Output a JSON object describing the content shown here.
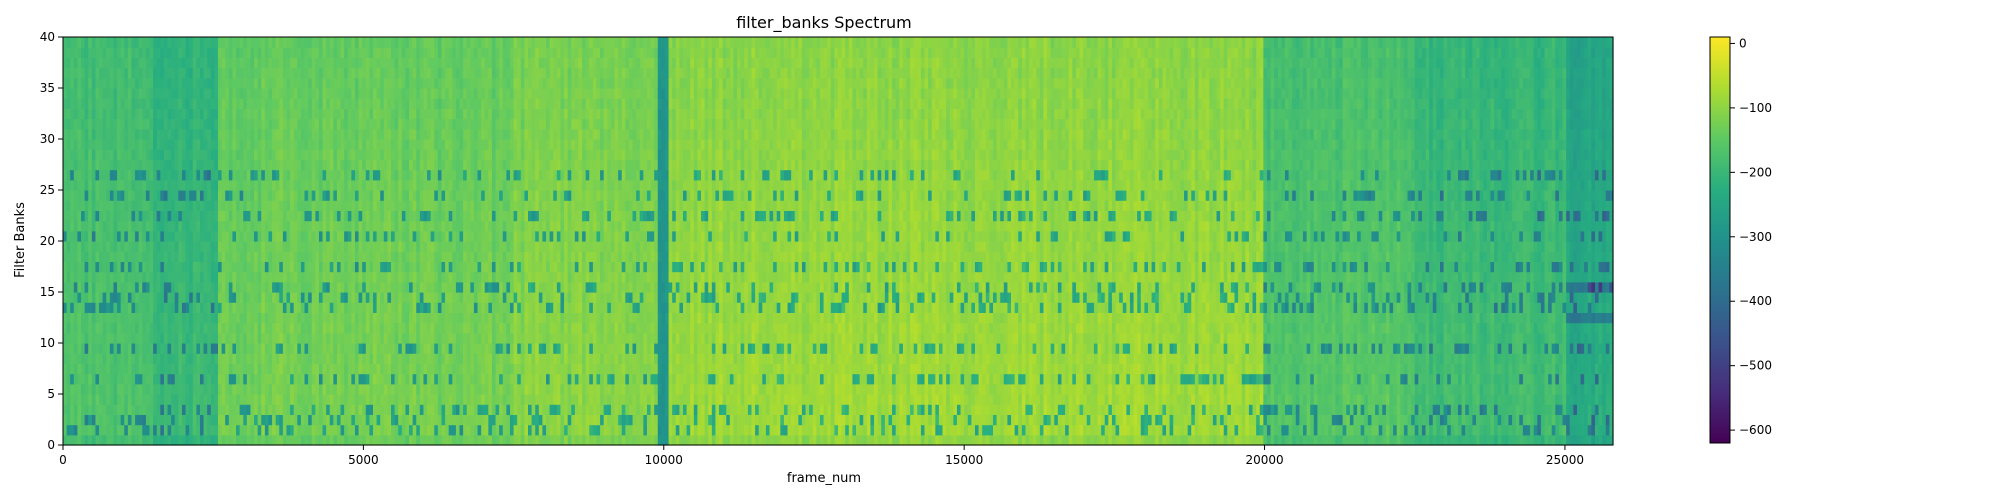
{
  "chart_data": {
    "type": "heatmap",
    "title": "filter_banks Spectrum",
    "xlabel": "frame_num",
    "ylabel": "Filter Banks",
    "xlim": [
      0,
      25800
    ],
    "ylim": [
      0,
      40
    ],
    "x_ticks": [
      "0",
      "5000",
      "10000",
      "15000",
      "20000",
      "25000"
    ],
    "x_tick_values": [
      0,
      5000,
      10000,
      15000,
      20000,
      25000
    ],
    "y_ticks": [
      "0",
      "5",
      "10",
      "15",
      "20",
      "25",
      "30",
      "35",
      "40"
    ],
    "y_tick_values": [
      0,
      5,
      10,
      15,
      20,
      25,
      30,
      35,
      40
    ],
    "colormap": "viridis",
    "colorbar": {
      "range": [
        -620,
        10
      ],
      "ticks": [
        "0",
        "−100",
        "−200",
        "−300",
        "−400",
        "−500",
        "−600"
      ],
      "tick_values": [
        0,
        -100,
        -200,
        -300,
        -400,
        -500,
        -600
      ]
    },
    "regions": [
      {
        "x": [
          0,
          1500
        ],
        "level": -165
      },
      {
        "x": [
          1500,
          2600
        ],
        "level": -190
      },
      {
        "x": [
          2600,
          7500
        ],
        "level": -120
      },
      {
        "x": [
          7500,
          9900
        ],
        "level": -100
      },
      {
        "x": [
          9900,
          10100
        ],
        "level": -300
      },
      {
        "x": [
          10100,
          20000
        ],
        "level": -80
      },
      {
        "x": [
          20000,
          22500
        ],
        "level": -155
      },
      {
        "x": [
          22500,
          25000
        ],
        "level": -185
      },
      {
        "x": [
          25000,
          25800
        ],
        "level": -230
      }
    ]
  }
}
